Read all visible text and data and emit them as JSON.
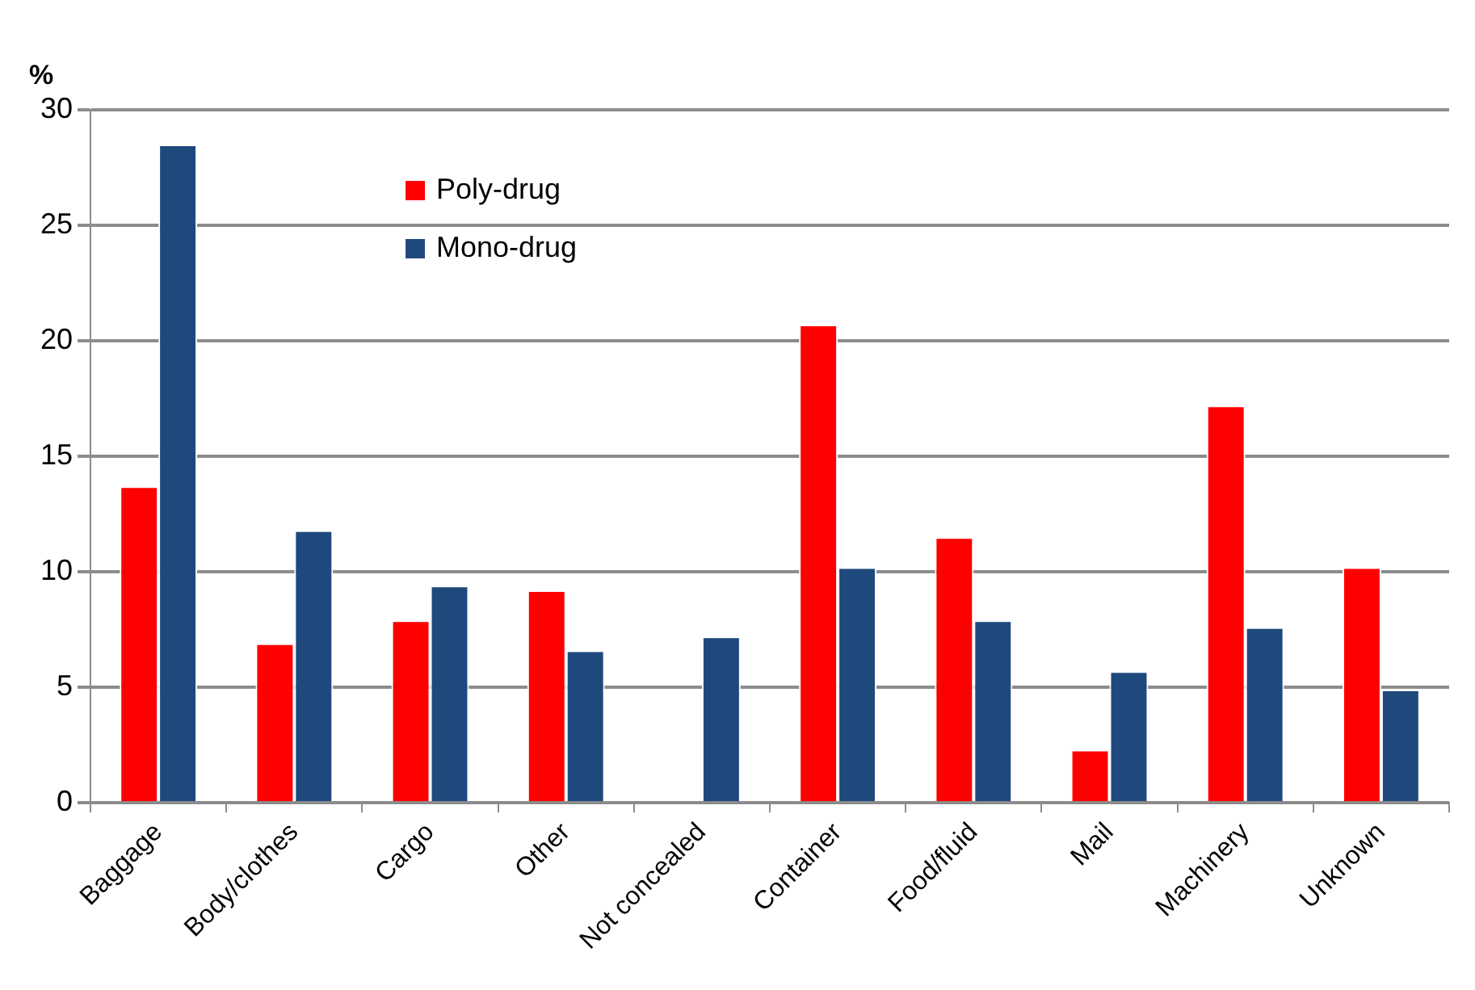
{
  "chart_data": {
    "type": "bar",
    "ylabel": "%",
    "categories": [
      "Baggage",
      "Body/clothes",
      "Cargo",
      "Other",
      "Not concealed",
      "Container",
      "Food/fluid",
      "Mail",
      "Machinery",
      "Unknown"
    ],
    "series": [
      {
        "name": "Poly-drug",
        "color": "#ff0000",
        "values": [
          13.7,
          6.9,
          7.9,
          9.2,
          0,
          20.7,
          11.5,
          2.3,
          17.2,
          10.2
        ]
      },
      {
        "name": "Mono-drug",
        "color": "#1f497d",
        "values": [
          28.5,
          11.8,
          9.4,
          6.6,
          7.2,
          10.2,
          7.9,
          5.7,
          7.6,
          4.9
        ]
      }
    ],
    "ylim": [
      0,
      30
    ],
    "yticks": [
      0,
      5,
      10,
      15,
      20,
      25,
      30
    ],
    "grid": "y",
    "legend": "top left"
  }
}
